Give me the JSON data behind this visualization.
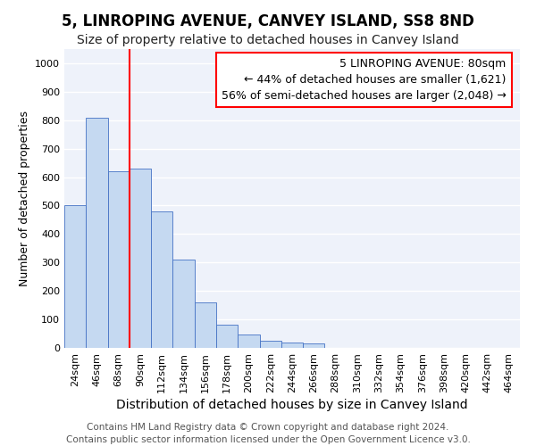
{
  "title": "5, LINROPING AVENUE, CANVEY ISLAND, SS8 8ND",
  "subtitle": "Size of property relative to detached houses in Canvey Island",
  "xlabel": "Distribution of detached houses by size in Canvey Island",
  "ylabel": "Number of detached properties",
  "footer_line1": "Contains HM Land Registry data © Crown copyright and database right 2024.",
  "footer_line2": "Contains public sector information licensed under the Open Government Licence v3.0.",
  "categories": [
    "24sqm",
    "46sqm",
    "68sqm",
    "90sqm",
    "112sqm",
    "134sqm",
    "156sqm",
    "178sqm",
    "200sqm",
    "222sqm",
    "244sqm",
    "266sqm",
    "288sqm",
    "310sqm",
    "332sqm",
    "354sqm",
    "376sqm",
    "398sqm",
    "420sqm",
    "442sqm",
    "464sqm"
  ],
  "values": [
    500,
    810,
    620,
    630,
    480,
    310,
    160,
    80,
    47,
    25,
    20,
    15,
    0,
    0,
    0,
    0,
    0,
    0,
    0,
    0,
    0
  ],
  "bar_color": "#c5d9f1",
  "bar_edge_color": "#4472c4",
  "vline_x": 2.5,
  "vline_color": "red",
  "annotation_text": "5 LINROPING AVENUE: 80sqm\n← 44% of detached houses are smaller (1,621)\n56% of semi-detached houses are larger (2,048) →",
  "annotation_box_color": "white",
  "annotation_box_edge_color": "red",
  "ylim": [
    0,
    1050
  ],
  "yticks": [
    0,
    100,
    200,
    300,
    400,
    500,
    600,
    700,
    800,
    900,
    1000
  ],
  "background_color": "#eef2fa",
  "grid_color": "white",
  "title_fontsize": 12,
  "subtitle_fontsize": 10,
  "xlabel_fontsize": 10,
  "ylabel_fontsize": 9,
  "tick_fontsize": 8,
  "annotation_fontsize": 9,
  "footer_fontsize": 7.5
}
